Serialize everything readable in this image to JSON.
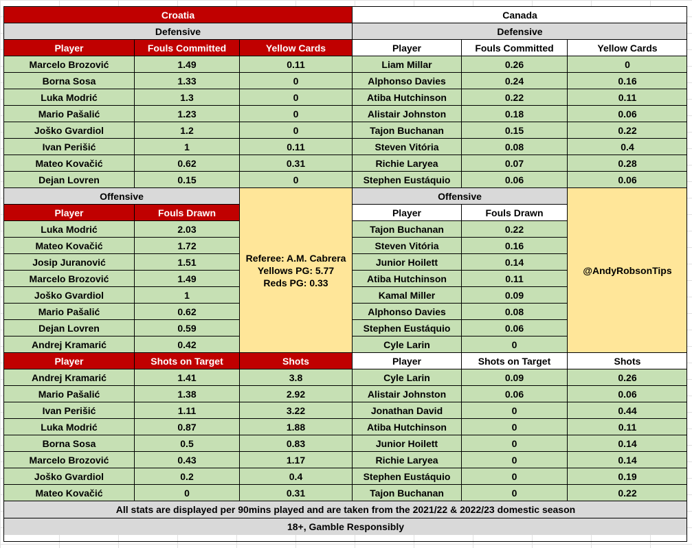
{
  "croatia": {
    "team": "Croatia",
    "defensive": {
      "title": "Defensive",
      "headers": [
        "Player",
        "Fouls Committed",
        "Yellow Cards"
      ],
      "rows": [
        [
          "Marcelo Brozović",
          "1.49",
          "0.11"
        ],
        [
          "Borna Sosa",
          "1.33",
          "0"
        ],
        [
          "Luka Modrić",
          "1.3",
          "0"
        ],
        [
          "Mario Pašalić",
          "1.23",
          "0"
        ],
        [
          "Joško Gvardiol",
          "1.2",
          "0"
        ],
        [
          "Ivan Perišić",
          "1",
          "0.11"
        ],
        [
          "Mateo Kovačić",
          "0.62",
          "0.31"
        ],
        [
          "Dejan Lovren",
          "0.15",
          "0"
        ]
      ]
    },
    "offensive": {
      "title": "Offensive",
      "headers": [
        "Player",
        "Fouls Drawn"
      ],
      "rows": [
        [
          "Luka Modrić",
          "2.03"
        ],
        [
          "Mateo Kovačić",
          "1.72"
        ],
        [
          "Josip Juranović",
          "1.51"
        ],
        [
          "Marcelo Brozović",
          "1.49"
        ],
        [
          "Joško Gvardiol",
          "1"
        ],
        [
          "Mario Pašalić",
          "0.62"
        ],
        [
          "Dejan Lovren",
          "0.59"
        ],
        [
          "Andrej Kramarić",
          "0.42"
        ]
      ]
    },
    "shots": {
      "headers": [
        "Player",
        "Shots on Target",
        "Shots"
      ],
      "rows": [
        [
          "Andrej Kramarić",
          "1.41",
          "3.8"
        ],
        [
          "Mario Pašalić",
          "1.38",
          "2.92"
        ],
        [
          "Ivan Perišić",
          "1.11",
          "3.22"
        ],
        [
          "Luka Modrić",
          "0.87",
          "1.88"
        ],
        [
          "Borna Sosa",
          "0.5",
          "0.83"
        ],
        [
          "Marcelo Brozović",
          "0.43",
          "1.17"
        ],
        [
          "Joško Gvardiol",
          "0.2",
          "0.4"
        ],
        [
          "Mateo Kovačić",
          "0",
          "0.31"
        ]
      ]
    }
  },
  "canada": {
    "team": "Canada",
    "defensive": {
      "title": "Defensive",
      "headers": [
        "Player",
        "Fouls Committed",
        "Yellow Cards"
      ],
      "rows": [
        [
          "Liam Millar",
          "0.26",
          "0"
        ],
        [
          "Alphonso Davies",
          "0.24",
          "0.16"
        ],
        [
          "Atiba Hutchinson",
          "0.22",
          "0.11"
        ],
        [
          "Alistair Johnston",
          "0.18",
          "0.06"
        ],
        [
          "Tajon Buchanan",
          "0.15",
          "0.22"
        ],
        [
          "Steven Vitória",
          "0.08",
          "0.4"
        ],
        [
          "Richie Laryea",
          "0.07",
          "0.28"
        ],
        [
          "Stephen Eustáquio",
          "0.06",
          "0.06"
        ]
      ]
    },
    "offensive": {
      "title": "Offensive",
      "headers": [
        "Player",
        "Fouls Drawn"
      ],
      "rows": [
        [
          "Tajon Buchanan",
          "0.22"
        ],
        [
          "Steven Vitória",
          "0.16"
        ],
        [
          "Junior Hoilett",
          "0.14"
        ],
        [
          "Atiba Hutchinson",
          "0.11"
        ],
        [
          "Kamal Miller",
          "0.09"
        ],
        [
          "Alphonso Davies",
          "0.08"
        ],
        [
          "Stephen Eustáquio",
          "0.06"
        ],
        [
          "Cyle Larin",
          "0"
        ]
      ]
    },
    "shots": {
      "headers": [
        "Player",
        "Shots on Target",
        "Shots"
      ],
      "rows": [
        [
          "Cyle Larin",
          "0.09",
          "0.26"
        ],
        [
          "Alistair Johnston",
          "0.06",
          "0.06"
        ],
        [
          "Jonathan David",
          "0",
          "0.44"
        ],
        [
          "Atiba Hutchinson",
          "0",
          "0.11"
        ],
        [
          "Junior Hoilett",
          "0",
          "0.14"
        ],
        [
          "Richie Laryea",
          "0",
          "0.14"
        ],
        [
          "Stephen Eustáquio",
          "0",
          "0.19"
        ],
        [
          "Tajon Buchanan",
          "0",
          "0.22"
        ]
      ]
    }
  },
  "referee_box": {
    "name_line": "Referee: A.M. Cabrera",
    "yellows_line": "Yellows PG: 5.77",
    "reds_line": "Reds PG: 0.33"
  },
  "handle": "@AndyRobsonTips",
  "footer": {
    "note": "All stats are displayed per 90mins played and are taken from the 2021/22 & 2022/23 domestic season",
    "gamble": "18+, Gamble Responsibly"
  },
  "colors": {
    "croatia_header": "#c00000",
    "section_title": "#d9d9d9",
    "data_rows": "#c6e0b4",
    "info_box": "#ffe699"
  }
}
